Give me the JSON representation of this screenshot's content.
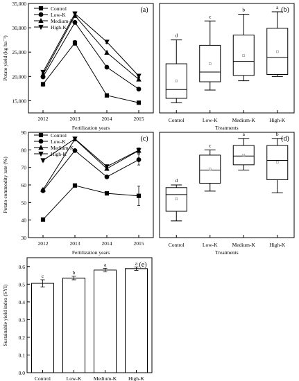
{
  "chart_data": [
    {
      "panel": "(a)",
      "type": "line",
      "xlabel": "Fertilization years",
      "ylabel": "Potato yield (kg ha⁻¹)",
      "x": [
        "2012",
        "2013",
        "2014",
        "2015"
      ],
      "ylim": [
        12500,
        35000
      ],
      "yticks": [
        "15,000",
        "20,000",
        "25,000",
        "30,000",
        "35,000"
      ],
      "ytick_values": [
        15000,
        20000,
        25000,
        30000,
        35000
      ],
      "legend_position": "top-left",
      "series": [
        {
          "name": "Control",
          "marker": "square",
          "values": [
            18400,
            26900,
            16100,
            14600
          ],
          "errors": [
            400,
            500,
            200,
            200
          ]
        },
        {
          "name": "Low-K",
          "marker": "circle",
          "values": [
            19900,
            31100,
            21900,
            17400
          ],
          "errors": [
            300,
            400,
            300,
            300
          ]
        },
        {
          "name": "Medium-K",
          "marker": "triangle-up",
          "values": [
            20400,
            32500,
            24900,
            19400
          ],
          "errors": [
            300,
            400,
            300,
            300
          ]
        },
        {
          "name": "High-K",
          "marker": "triangle-down",
          "values": [
            20900,
            32900,
            27100,
            20100
          ],
          "errors": [
            300,
            400,
            300,
            300
          ]
        }
      ]
    },
    {
      "panel": "(b)",
      "type": "box",
      "xlabel": "Treatments",
      "categories": [
        "Control",
        "Low-K",
        "Medium-K",
        "High-K"
      ],
      "ylim": [
        12500,
        35000
      ],
      "letters": [
        "d",
        "c",
        "b",
        "a"
      ],
      "boxes": [
        {
          "whisker_low": 14600,
          "q1": 15500,
          "median": 17300,
          "q3": 22600,
          "whisker_high": 27500,
          "mean": 19100
        },
        {
          "whisker_low": 17200,
          "q1": 18900,
          "median": 20900,
          "q3": 26400,
          "whisker_high": 31400,
          "mean": 22600
        },
        {
          "whisker_low": 19100,
          "q1": 20200,
          "median": 23100,
          "q3": 28500,
          "whisker_high": 32800,
          "mean": 24300
        },
        {
          "whisker_low": 20000,
          "q1": 20400,
          "median": 23900,
          "q3": 29900,
          "whisker_high": 33300,
          "mean": 25100
        }
      ]
    },
    {
      "panel": "(c)",
      "type": "line",
      "xlabel": "Fertilization years",
      "ylabel": "Potato commodity rate (%)",
      "x": [
        "2012",
        "2013",
        "2014",
        "2015"
      ],
      "ylim": [
        30,
        90
      ],
      "yticks": [
        "30",
        "40",
        "50",
        "60",
        "70",
        "80",
        "90"
      ],
      "ytick_values": [
        30,
        40,
        50,
        60,
        70,
        80,
        90
      ],
      "legend_position": "top-left",
      "series": [
        {
          "name": "Control",
          "marker": "square",
          "values": [
            40.3,
            59.7,
            55.2,
            53.8
          ],
          "errors": [
            0.8,
            0.5,
            0.5,
            5.5
          ]
        },
        {
          "name": "Low-K",
          "marker": "circle",
          "values": [
            56.7,
            79.6,
            64.6,
            74.4
          ],
          "errors": [
            0.8,
            0.5,
            0.8,
            3.0
          ]
        },
        {
          "name": "Medium-K",
          "marker": "triangle-up",
          "values": [
            57.3,
            86.1,
            69.3,
            79.6
          ],
          "errors": [
            0.8,
            0.5,
            0.8,
            1.5
          ]
        },
        {
          "name": "High-K",
          "marker": "triangle-down",
          "values": [
            74.0,
            86.3,
            70.5,
            79.8
          ],
          "errors": [
            0.5,
            0.5,
            0.8,
            1.0
          ]
        }
      ]
    },
    {
      "panel": "(d)",
      "type": "box",
      "xlabel": "Treatments",
      "categories": [
        "Control",
        "Low-K",
        "Medium-K",
        "High-K"
      ],
      "ylim": [
        30,
        90
      ],
      "letters": [
        "d",
        "c",
        "a",
        "b"
      ],
      "boxes": [
        {
          "whisker_low": 39.5,
          "q1": 45.0,
          "median": 54.5,
          "q3": 58.5,
          "whisker_high": 60.0,
          "mean": 52.0
        },
        {
          "whisker_low": 56.5,
          "q1": 61.0,
          "median": 68.5,
          "q3": 77.0,
          "whisker_high": 80.0,
          "mean": 69.0
        },
        {
          "whisker_low": 68.5,
          "q1": 71.5,
          "median": 76.5,
          "q3": 82.5,
          "whisker_high": 86.5,
          "mean": 77.0
        },
        {
          "whisker_low": 55.5,
          "q1": 63.0,
          "median": 74.0,
          "q3": 82.5,
          "whisker_high": 86.5,
          "mean": 73.0
        }
      ]
    },
    {
      "panel": "(e)",
      "type": "bar",
      "xlabel": "Treatments",
      "ylabel": "Sustainable yield index (SYI)",
      "categories": [
        "Control",
        "Low-K",
        "Medium-K",
        "High-K"
      ],
      "values": [
        0.505,
        0.535,
        0.58,
        0.588
      ],
      "errors": [
        0.02,
        0.01,
        0.01,
        0.01
      ],
      "letters": [
        "c",
        "b",
        "a",
        "a"
      ],
      "ylim": [
        0.0,
        0.65
      ],
      "yticks": [
        "0.0",
        "0.1",
        "0.2",
        "0.3",
        "0.4",
        "0.5",
        "0.6"
      ],
      "ytick_values": [
        0.0,
        0.1,
        0.2,
        0.3,
        0.4,
        0.5,
        0.6
      ]
    }
  ]
}
